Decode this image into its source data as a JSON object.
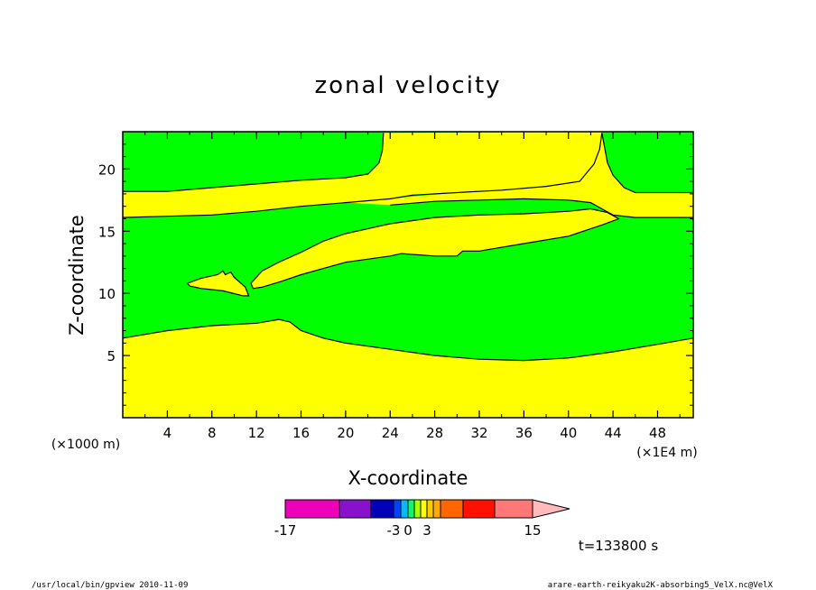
{
  "chart_data": {
    "type": "heatmap",
    "title": "zonal velocity",
    "xlabel": "X-coordinate",
    "ylabel": "Z-coordinate",
    "x_unit_left": "(×1000 m)",
    "x_unit_right": "(×1E4 m)",
    "xlim": [
      0,
      51.2
    ],
    "ylim": [
      0,
      23
    ],
    "x_ticks": [
      4,
      8,
      12,
      16,
      20,
      24,
      28,
      32,
      36,
      40,
      44,
      48
    ],
    "y_ticks": [
      5,
      10,
      15,
      20
    ],
    "regions": {
      "fill_colors": {
        "yellow": "#ffff00",
        "green": "#00ff00"
      },
      "bottom_yellow_boundary": [
        [
          0,
          6.4
        ],
        [
          4,
          7.0
        ],
        [
          8,
          7.4
        ],
        [
          12,
          7.6
        ],
        [
          14,
          7.9
        ],
        [
          15,
          7.7
        ],
        [
          16,
          7.0
        ],
        [
          18,
          6.4
        ],
        [
          20,
          6.0
        ],
        [
          24,
          5.5
        ],
        [
          28,
          5.0
        ],
        [
          32,
          4.7
        ],
        [
          36,
          4.6
        ],
        [
          40,
          4.8
        ],
        [
          44,
          5.3
        ],
        [
          48,
          5.9
        ],
        [
          51.2,
          6.4
        ]
      ],
      "top_band_upper": [
        [
          0,
          18.2
        ],
        [
          4,
          18.2
        ],
        [
          8,
          18.5
        ],
        [
          12,
          18.8
        ],
        [
          16,
          19.1
        ],
        [
          20,
          19.3
        ],
        [
          22,
          19.6
        ],
        [
          23,
          20.5
        ],
        [
          23.3,
          21.5
        ],
        [
          23.4,
          22.9
        ]
      ],
      "top_band_upper_right": [
        [
          43,
          22.9
        ],
        [
          42.8,
          21.6
        ],
        [
          42.3,
          20.4
        ],
        [
          41,
          19.0
        ],
        [
          38,
          18.6
        ],
        [
          34,
          18.3
        ],
        [
          30,
          18.1
        ],
        [
          26,
          17.9
        ],
        [
          24,
          17.6
        ],
        [
          20,
          17.3
        ],
        [
          16,
          17.0
        ],
        [
          12,
          16.6
        ],
        [
          8,
          16.3
        ],
        [
          4,
          16.2
        ],
        [
          0,
          16.1
        ]
      ],
      "top_band_right_segment": [
        [
          43,
          22.9
        ],
        [
          43.5,
          20.5
        ],
        [
          44,
          19.5
        ],
        [
          45,
          18.5
        ],
        [
          46,
          18.1
        ],
        [
          51.2,
          18.1
        ]
      ],
      "top_band_right_lower": [
        [
          51.2,
          16.1
        ],
        [
          46,
          16.1
        ],
        [
          44,
          16.3
        ],
        [
          43,
          16.8
        ],
        [
          42,
          17.3
        ],
        [
          40,
          17.5
        ],
        [
          36,
          17.6
        ],
        [
          32,
          17.5
        ],
        [
          28,
          17.4
        ],
        [
          24,
          17.1
        ]
      ],
      "middle_band_upper": [
        [
          11.5,
          10.8
        ],
        [
          12.5,
          11.8
        ],
        [
          14,
          12.5
        ],
        [
          16,
          13.3
        ],
        [
          18,
          14.2
        ],
        [
          20,
          14.8
        ],
        [
          24,
          15.6
        ],
        [
          28,
          16.1
        ],
        [
          32,
          16.3
        ],
        [
          36,
          16.4
        ],
        [
          40,
          16.6
        ],
        [
          42,
          16.8
        ],
        [
          43.5,
          16.5
        ],
        [
          44.5,
          16.0
        ]
      ],
      "middle_band_lower": [
        [
          44.5,
          16.0
        ],
        [
          43,
          15.5
        ],
        [
          40,
          14.6
        ],
        [
          36,
          14.0
        ],
        [
          32,
          13.4
        ],
        [
          30.5,
          13.4
        ],
        [
          30,
          13.0
        ],
        [
          28,
          13.0
        ],
        [
          25,
          13.2
        ],
        [
          24,
          13.0
        ],
        [
          20,
          12.5
        ],
        [
          18,
          12.0
        ],
        [
          16,
          11.5
        ],
        [
          14,
          10.9
        ],
        [
          12.5,
          10.5
        ],
        [
          11.7,
          10.4
        ]
      ],
      "small_island": [
        [
          5.8,
          10.8
        ],
        [
          7,
          11.2
        ],
        [
          8.5,
          11.5
        ],
        [
          9,
          11.8
        ],
        [
          9.2,
          11.5
        ],
        [
          9.7,
          11.7
        ],
        [
          10,
          11.3
        ],
        [
          11,
          10.5
        ],
        [
          11.3,
          9.8
        ],
        [
          10.8,
          9.8
        ],
        [
          9,
          10.2
        ],
        [
          7,
          10.4
        ],
        [
          6,
          10.6
        ]
      ]
    },
    "colorbar": {
      "tick_labels": [
        "-17",
        "-3",
        "0",
        "3",
        "15"
      ],
      "colors": [
        "#ee00bb",
        "#8811cc",
        "#0000bb",
        "#0044ff",
        "#00bbff",
        "#00ff66",
        "#aaff00",
        "#ffff00",
        "#ffcc00",
        "#ffaa00",
        "#ff6600",
        "#ff1100",
        "#ff7777",
        "#ffbbbb"
      ]
    },
    "time_label": "t=133800 s",
    "footer_left": "/usr/local/bin/gpview  2010-11-09",
    "footer_right": "arare-earth-reikyaku2K-absorbing5_VelX.nc@VelX"
  }
}
